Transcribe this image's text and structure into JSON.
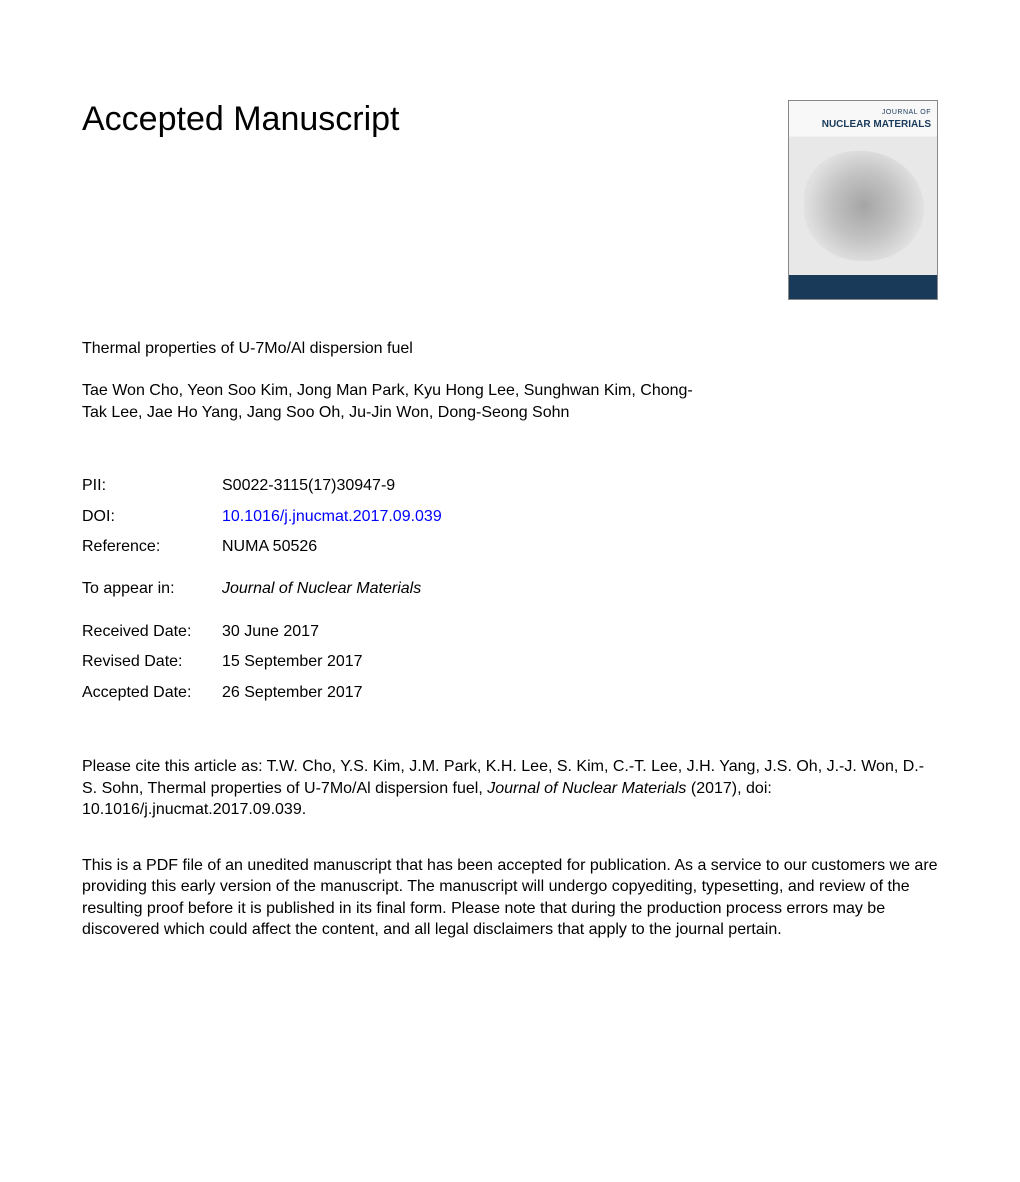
{
  "heading": "Accepted Manuscript",
  "cover": {
    "supertitle": "JOURNAL OF",
    "title": "NUCLEAR MATERIALS"
  },
  "article_title": "Thermal properties of U-7Mo/Al dispersion fuel",
  "authors": "Tae Won Cho, Yeon Soo Kim, Jong Man Park, Kyu Hong Lee, Sunghwan Kim, Chong-Tak Lee, Jae Ho Yang, Jang Soo Oh, Ju-Jin Won, Dong-Seong Sohn",
  "meta": {
    "pii_label": "PII:",
    "pii_value": "S0022-3115(17)30947-9",
    "doi_label": "DOI:",
    "doi_value": "10.1016/j.jnucmat.2017.09.039",
    "ref_label": "Reference:",
    "ref_value": "NUMA 50526",
    "appear_label": "To appear in:",
    "appear_value": "Journal of Nuclear Materials",
    "received_label": "Received Date:",
    "received_value": "30 June 2017",
    "revised_label": "Revised Date:",
    "revised_value": "15 September 2017",
    "accepted_label": "Accepted Date:",
    "accepted_value": "26 September 2017"
  },
  "citation_prefix": "Please cite this article as: T.W. Cho, Y.S. Kim, J.M. Park, K.H. Lee, S. Kim, C.-T. Lee, J.H. Yang, J.S. Oh, J.-J. Won, D.-S. Sohn, Thermal properties of U-7Mo/Al dispersion fuel, ",
  "citation_journal": "Journal of Nuclear Materials",
  "citation_suffix": " (2017), doi: 10.1016/j.jnucmat.2017.09.039.",
  "disclaimer": "This is a PDF file of an unedited manuscript that has been accepted for publication. As a service to our customers we are providing this early version of the manuscript. The manuscript will undergo copyediting, typesetting, and review of the resulting proof before it is published in its final form. Please note that during the production process errors may be discovered which could affect the content, and all legal disclaimers that apply to the journal pertain."
}
